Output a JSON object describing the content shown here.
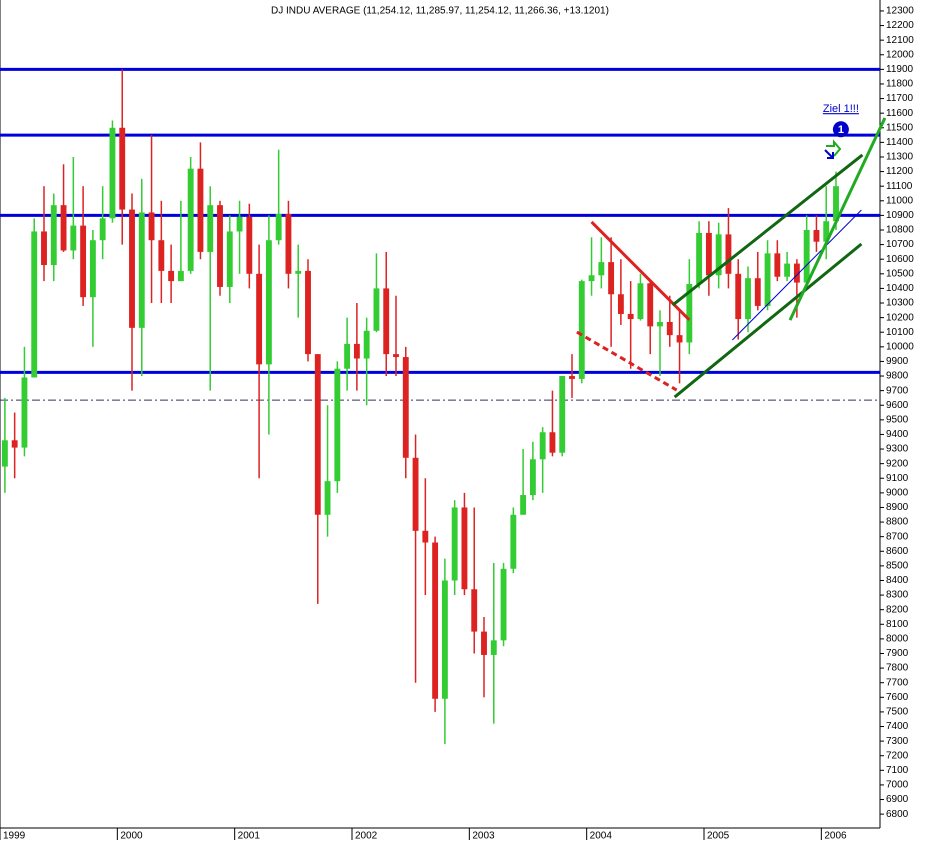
{
  "chart_data": {
    "type": "candlestick",
    "title": "DJ INDU AVERAGE (11,254.12, 11,285.97, 11,254.12, 11,266.36, +13.1201)",
    "categories": [
      "1999",
      null,
      null,
      null,
      null,
      null,
      null,
      null,
      null,
      null,
      null,
      null,
      "2000",
      null,
      null,
      null,
      null,
      null,
      null,
      null,
      null,
      null,
      null,
      null,
      "2001",
      null,
      null,
      null,
      null,
      null,
      null,
      null,
      null,
      null,
      null,
      null,
      "2002",
      null,
      null,
      null,
      null,
      null,
      null,
      null,
      null,
      null,
      null,
      null,
      "2003",
      null,
      null,
      null,
      null,
      null,
      null,
      null,
      null,
      null,
      null,
      null,
      "2004",
      null,
      null,
      null,
      null,
      null,
      null,
      null,
      null,
      null,
      null,
      null,
      "2005",
      null,
      null,
      null,
      null,
      null,
      null,
      null,
      null,
      null,
      null,
      null,
      "2006",
      null,
      null,
      null,
      null,
      null
    ],
    "open": [
      9180,
      9360,
      9310,
      9790,
      10790,
      10560,
      10970,
      10660,
      10830,
      10340,
      10730,
      10880,
      11500,
      10940,
      10130,
      10920,
      10730,
      10520,
      10450,
      10520,
      11220,
      10650,
      10970,
      10410,
      10790,
      10890,
      10500,
      9880,
      10730,
      10910,
      10500,
      10520,
      9950,
      8850,
      9080,
      9850,
      10020,
      9920,
      10110,
      10400,
      9950,
      9930,
      9240,
      8740,
      8660,
      7590,
      8400,
      8900,
      8340,
      8050,
      7890,
      7990,
      8480,
      8850,
      8985,
      9230,
      9415,
      9275,
      9800,
      9780,
      10450,
      10490,
      10580,
      10360,
      10225,
      10190,
      10435,
      10140,
      10170,
      10080,
      10030,
      10430,
      10780,
      10490,
      10770,
      10500,
      10190,
      10470,
      10280,
      10640,
      10480,
      10570,
      10440,
      10800,
      10720,
      10860,
      null,
      null,
      null,
      null
    ],
    "high": [
      9650,
      9550,
      10000,
      10880,
      11100,
      11050,
      11250,
      11300,
      11100,
      10800,
      11100,
      11550,
      11900,
      11050,
      11150,
      11450,
      11000,
      10700,
      11000,
      11300,
      11400,
      11100,
      11000,
      10900,
      11000,
      10980,
      10700,
      10900,
      11350,
      11000,
      10700,
      10600,
      9950,
      9600,
      9900,
      10200,
      10300,
      10200,
      10640,
      10650,
      10350,
      10000,
      9400,
      9100,
      8700,
      8550,
      8950,
      9000,
      8900,
      8150,
      8520,
      8520,
      8900,
      9300,
      9350,
      9450,
      9700,
      9800,
      9950,
      10460,
      10750,
      10750,
      10750,
      10600,
      10450,
      10500,
      10450,
      10250,
      10350,
      10250,
      10600,
      10860,
      10860,
      10850,
      10950,
      10600,
      10550,
      10650,
      10730,
      10730,
      10650,
      10600,
      10900,
      10900,
      11100,
      11200,
      null,
      null,
      null,
      null
    ],
    "low": [
      9000,
      9100,
      9250,
      9800,
      10450,
      10450,
      10650,
      10600,
      10280,
      10000,
      10600,
      10850,
      10700,
      9700,
      9800,
      10300,
      10300,
      10300,
      10450,
      10500,
      10600,
      9700,
      10350,
      10300,
      10500,
      10400,
      9100,
      9400,
      10700,
      10400,
      10200,
      9900,
      8240,
      8700,
      9000,
      9700,
      9700,
      9600,
      10100,
      9800,
      9800,
      9100,
      7700,
      8300,
      7500,
      7280,
      8300,
      8300,
      7900,
      7600,
      7420,
      7950,
      8450,
      8850,
      8950,
      9000,
      9250,
      9250,
      9650,
      9750,
      10350,
      10400,
      10000,
      10150,
      9850,
      10180,
      9950,
      9800,
      10000,
      9750,
      9950,
      10400,
      10350,
      10400,
      10400,
      10050,
      10100,
      10250,
      10250,
      10450,
      10450,
      10200,
      10400,
      10650,
      10600,
      10800,
      null,
      null,
      null,
      null
    ],
    "close": [
      9360,
      9310,
      9790,
      10790,
      10560,
      10970,
      10660,
      10830,
      10340,
      10730,
      10880,
      11500,
      10940,
      10130,
      10920,
      10730,
      10520,
      10450,
      10520,
      11220,
      10650,
      10970,
      10410,
      10790,
      10890,
      10500,
      9880,
      10730,
      10910,
      10500,
      10520,
      9950,
      8850,
      9080,
      9850,
      10020,
      9920,
      10110,
      10400,
      9950,
      9930,
      9240,
      8740,
      8660,
      7590,
      8400,
      8900,
      8340,
      8050,
      7890,
      7990,
      8480,
      8850,
      8985,
      9230,
      9415,
      9275,
      9800,
      9780,
      10450,
      10490,
      10580,
      10360,
      10225,
      10190,
      10435,
      10140,
      10170,
      10080,
      10030,
      10430,
      10780,
      10490,
      10770,
      10500,
      10190,
      10470,
      10280,
      10640,
      10480,
      10570,
      10440,
      10800,
      10720,
      10860,
      11100,
      null,
      null,
      null,
      null
    ],
    "up_color": "#33cc33",
    "down_color": "#dd2222",
    "ylim": [
      6705,
      12375
    ],
    "yticks": [
      6800,
      6900,
      7000,
      7100,
      7200,
      7300,
      7400,
      7500,
      7600,
      7700,
      7800,
      7900,
      8000,
      8100,
      8200,
      8300,
      8400,
      8500,
      8600,
      8700,
      8800,
      8900,
      9000,
      9100,
      9200,
      9300,
      9400,
      9500,
      9600,
      9700,
      9800,
      9900,
      10000,
      10100,
      10200,
      10300,
      10400,
      10500,
      10600,
      10700,
      10800,
      10900,
      11000,
      11100,
      11200,
      11300,
      11400,
      11500,
      11600,
      11700,
      11800,
      11900,
      12000,
      12100,
      12200,
      12300
    ],
    "hlines": [
      {
        "value": 11900,
        "color": "#0000dd",
        "style": "solid"
      },
      {
        "value": 11450,
        "color": "#0000dd",
        "style": "solid"
      },
      {
        "value": 10900,
        "color": "#0000dd",
        "style": "solid"
      },
      {
        "value": 9825,
        "color": "#0000dd",
        "style": "solid"
      },
      {
        "value": 9635,
        "color": "#333366",
        "style": "dashdot"
      }
    ],
    "trendlines": [
      {
        "start": [
          60.0,
          10855
        ],
        "end": [
          70.0,
          10184
        ],
        "color": "#dd2222",
        "style": "solid"
      },
      {
        "start": [
          58.5,
          10101
        ],
        "end": [
          68.7,
          9704
        ],
        "color": "#dd2222",
        "style": "dashed"
      },
      {
        "start": [
          68.5,
          9656
        ],
        "end": [
          87.6,
          10704
        ],
        "color": "#116611",
        "style": "solid"
      },
      {
        "start": [
          68.3,
          10286
        ],
        "end": [
          87.7,
          11314
        ],
        "color": "#116611",
        "style": "solid"
      },
      {
        "start": [
          74.4,
          10047
        ],
        "end": [
          87.6,
          10937
        ],
        "color": "#0000cc",
        "style": "thin"
      },
      {
        "start": [
          80.3,
          10183
        ],
        "end": [
          90.0,
          11567
        ],
        "color": "#22aa22",
        "style": "solid"
      }
    ],
    "markers": [
      {
        "at": 85.5,
        "value": 11490,
        "label": "1",
        "annotation": "Ziel 1!!!"
      }
    ]
  }
}
